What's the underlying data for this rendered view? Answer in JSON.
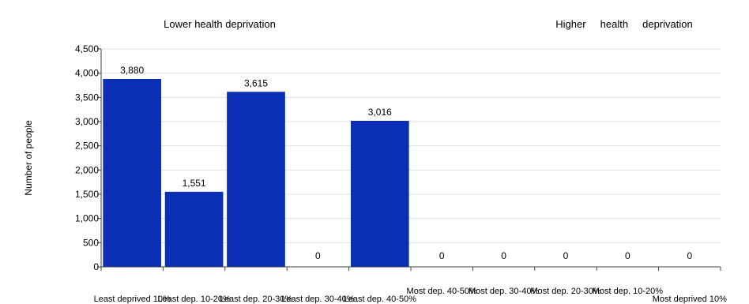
{
  "chart_data": {
    "type": "bar",
    "title": "",
    "xlabel": "",
    "ylabel": "Number of people",
    "ylim": [
      0,
      4500
    ],
    "yticks": [
      0,
      500,
      1000,
      1500,
      2000,
      2500,
      3000,
      3500,
      4000,
      4500
    ],
    "ytick_labels": [
      "0",
      "500",
      "1,000",
      "1,500",
      "2,000",
      "2,500",
      "3,000",
      "3,500",
      "4,000",
      "4,500"
    ],
    "grid": true,
    "bar_color": "#0a2eb4",
    "categories": [
      "Least deprived 10%",
      "Least dep. 10-20%",
      "Least dep. 20-30%",
      "Least dep. 30-40%",
      "Least dep. 40-50%",
      "Most dep. 40-50%",
      "Most dep. 30-40%",
      "Most dep. 20-30%",
      "Most dep. 10-20%",
      "Most deprived 10%"
    ],
    "values": [
      3880,
      1551,
      3615,
      0,
      3016,
      0,
      0,
      0,
      0,
      0
    ],
    "value_labels": [
      "3,880",
      "1,551",
      "3,615",
      "0",
      "3,016",
      "0",
      "0",
      "0",
      "0",
      "0"
    ],
    "annotations": {
      "left": "Lower health deprivation",
      "right": "Higher     health     deprivation"
    }
  }
}
